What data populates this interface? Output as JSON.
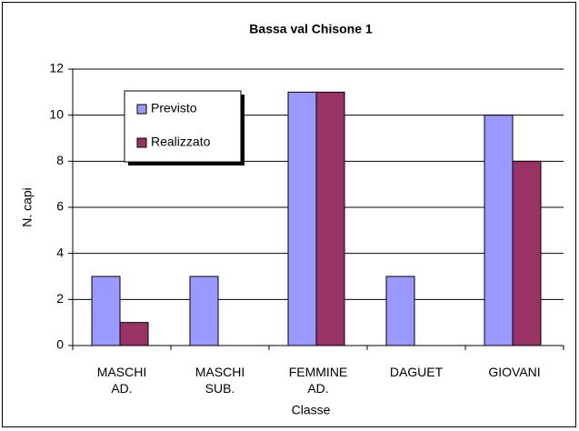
{
  "chart_data": {
    "type": "bar",
    "title": "Bassa val Chisone 1",
    "categories": [
      "MASCHI AD.",
      "MASCHI SUB.",
      "FEMMINE AD.",
      "DAGUET",
      "GIOVANI"
    ],
    "series": [
      {
        "name": "Previsto",
        "color": "#9999ff",
        "values": [
          3,
          3,
          11,
          3,
          10
        ]
      },
      {
        "name": "Realizzato",
        "color": "#993366",
        "values": [
          1,
          0,
          11,
          0,
          8
        ]
      }
    ],
    "xlabel": "Classe",
    "ylabel": "N. capi",
    "ylim": [
      0,
      12
    ],
    "yticks": [
      0,
      2,
      4,
      6,
      8,
      10,
      12
    ],
    "grid": true,
    "legend": "upper left"
  }
}
